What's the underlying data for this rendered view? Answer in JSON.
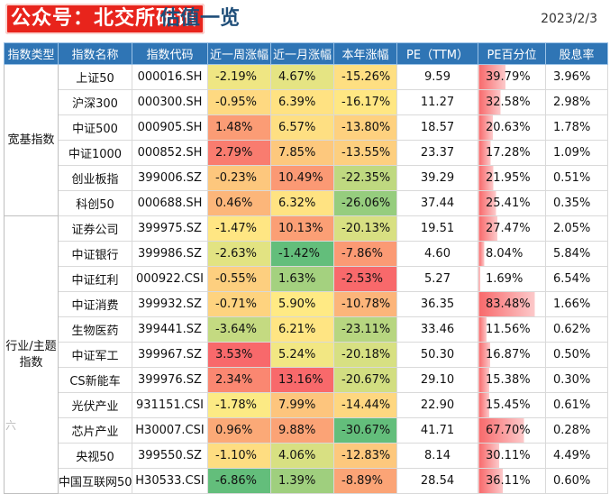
{
  "brand": "公众号：北交所研讯",
  "title": "估值一览",
  "date": "2023/2/3",
  "watermark": "六",
  "headers": [
    "指数类型",
    "指数名称",
    "指数代码",
    "近一周涨幅",
    "近一月涨幅",
    "本年涨幅",
    "PE（TTM）",
    "PE百分位",
    "股息率"
  ],
  "groups": [
    {
      "label": "宽基指数",
      "rows": 6
    },
    {
      "label": "行业/主题指数",
      "rows": 11
    }
  ],
  "rows": [
    {
      "name": "上证50",
      "code": "000016.SH",
      "week": "-2.19%",
      "month": "4.67%",
      "ytd": "-15.26%",
      "pe": "9.59",
      "pct": "39.79%",
      "dy": "3.96%"
    },
    {
      "name": "沪深300",
      "code": "000300.SH",
      "week": "-0.95%",
      "month": "6.39%",
      "ytd": "-16.17%",
      "pe": "11.27",
      "pct": "32.58%",
      "dy": "2.98%"
    },
    {
      "name": "中证500",
      "code": "000905.SH",
      "week": "1.48%",
      "month": "6.57%",
      "ytd": "-13.80%",
      "pe": "18.57",
      "pct": "20.63%",
      "dy": "1.78%"
    },
    {
      "name": "中证1000",
      "code": "000852.SH",
      "week": "2.79%",
      "month": "7.85%",
      "ytd": "-13.55%",
      "pe": "23.37",
      "pct": "17.28%",
      "dy": "1.09%"
    },
    {
      "name": "创业板指",
      "code": "399006.SZ",
      "week": "-0.23%",
      "month": "10.49%",
      "ytd": "-22.35%",
      "pe": "39.29",
      "pct": "21.95%",
      "dy": "0.51%"
    },
    {
      "name": "科创50",
      "code": "000688.SH",
      "week": "0.46%",
      "month": "6.32%",
      "ytd": "-26.06%",
      "pe": "37.44",
      "pct": "25.41%",
      "dy": "0.35%"
    },
    {
      "name": "证券公司",
      "code": "399975.SZ",
      "week": "-1.47%",
      "month": "10.13%",
      "ytd": "-20.13%",
      "pe": "19.51",
      "pct": "27.47%",
      "dy": "2.05%"
    },
    {
      "name": "中证银行",
      "code": "399986.SZ",
      "week": "-2.63%",
      "month": "-1.42%",
      "ytd": "-7.86%",
      "pe": "4.60",
      "pct": "8.04%",
      "dy": "5.84%"
    },
    {
      "name": "中证红利",
      "code": "000922.CSI",
      "week": "-0.55%",
      "month": "1.63%",
      "ytd": "-2.53%",
      "pe": "5.27",
      "pct": "1.69%",
      "dy": "6.54%"
    },
    {
      "name": "中证消费",
      "code": "399932.SZ",
      "week": "-0.71%",
      "month": "5.90%",
      "ytd": "-10.78%",
      "pe": "36.35",
      "pct": "83.48%",
      "dy": "1.66%"
    },
    {
      "name": "生物医药",
      "code": "399441.SZ",
      "week": "-3.64%",
      "month": "6.21%",
      "ytd": "-23.11%",
      "pe": "33.46",
      "pct": "11.56%",
      "dy": "0.62%"
    },
    {
      "name": "中证军工",
      "code": "399967.SZ",
      "week": "3.53%",
      "month": "5.24%",
      "ytd": "-20.18%",
      "pe": "50.30",
      "pct": "16.87%",
      "dy": "0.50%"
    },
    {
      "name": "CS新能车",
      "code": "399976.SZ",
      "week": "2.34%",
      "month": "13.16%",
      "ytd": "-20.67%",
      "pe": "29.10",
      "pct": "15.38%",
      "dy": "0.30%"
    },
    {
      "name": "光伏产业",
      "code": "931151.CSI",
      "week": "-1.78%",
      "month": "7.99%",
      "ytd": "-14.44%",
      "pe": "22.90",
      "pct": "15.45%",
      "dy": "0.61%"
    },
    {
      "name": "芯片产业",
      "code": "H30007.CSI",
      "week": "0.96%",
      "month": "9.88%",
      "ytd": "-30.67%",
      "pe": "41.71",
      "pct": "67.70%",
      "dy": "0.28%"
    },
    {
      "name": "央视50",
      "code": "399550.SZ",
      "week": "-1.10%",
      "month": "4.06%",
      "ytd": "-12.83%",
      "pe": "8.14",
      "pct": "30.11%",
      "dy": "4.49%"
    },
    {
      "name": "中国互联网50",
      "code": "H30533.CSI",
      "week": "-6.86%",
      "month": "1.39%",
      "ytd": "-8.89%",
      "pe": "28.54",
      "pct": "36.11%",
      "dy": "0.60%"
    }
  ]
}
